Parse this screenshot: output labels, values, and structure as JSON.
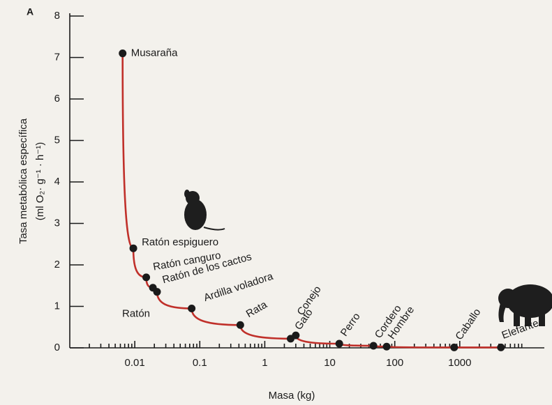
{
  "chart_data": {
    "type": "scatter",
    "panel_label": "A",
    "xlabel": "Masa (kg)",
    "ylabel": [
      "Tasa metabólica específica",
      "(ml O₂· g⁻¹ · h⁻¹)"
    ],
    "log_x": true,
    "color": "#1a1a1a",
    "curve_color": "#c0302a",
    "categories": [
      "Musaraña",
      "Ratón espiguero",
      "Ratón canguro",
      "Ratón de los cactos",
      "Ratón",
      "Ardilla voladora",
      "Rata",
      "Gato",
      "Conejo",
      "Perro",
      "Cordero",
      "Hombre",
      "Caballo",
      "Elefante"
    ],
    "x": [
      0.0065,
      0.0095,
      0.015,
      0.019,
      0.022,
      0.075,
      0.42,
      2.5,
      3,
      14,
      47,
      75,
      820,
      4300
    ],
    "values": [
      7.1,
      2.4,
      1.7,
      1.45,
      1.35,
      0.95,
      0.55,
      0.22,
      0.3,
      0.1,
      0.05,
      0.03,
      0.01,
      0.01
    ],
    "xlim": [
      0.001,
      20000
    ],
    "xticks": [
      0.01,
      0.1,
      1,
      10,
      100,
      1000
    ],
    "ylim": [
      0,
      8
    ],
    "yticks": [
      0,
      1,
      2,
      3,
      4,
      5,
      6,
      7,
      8
    ]
  }
}
